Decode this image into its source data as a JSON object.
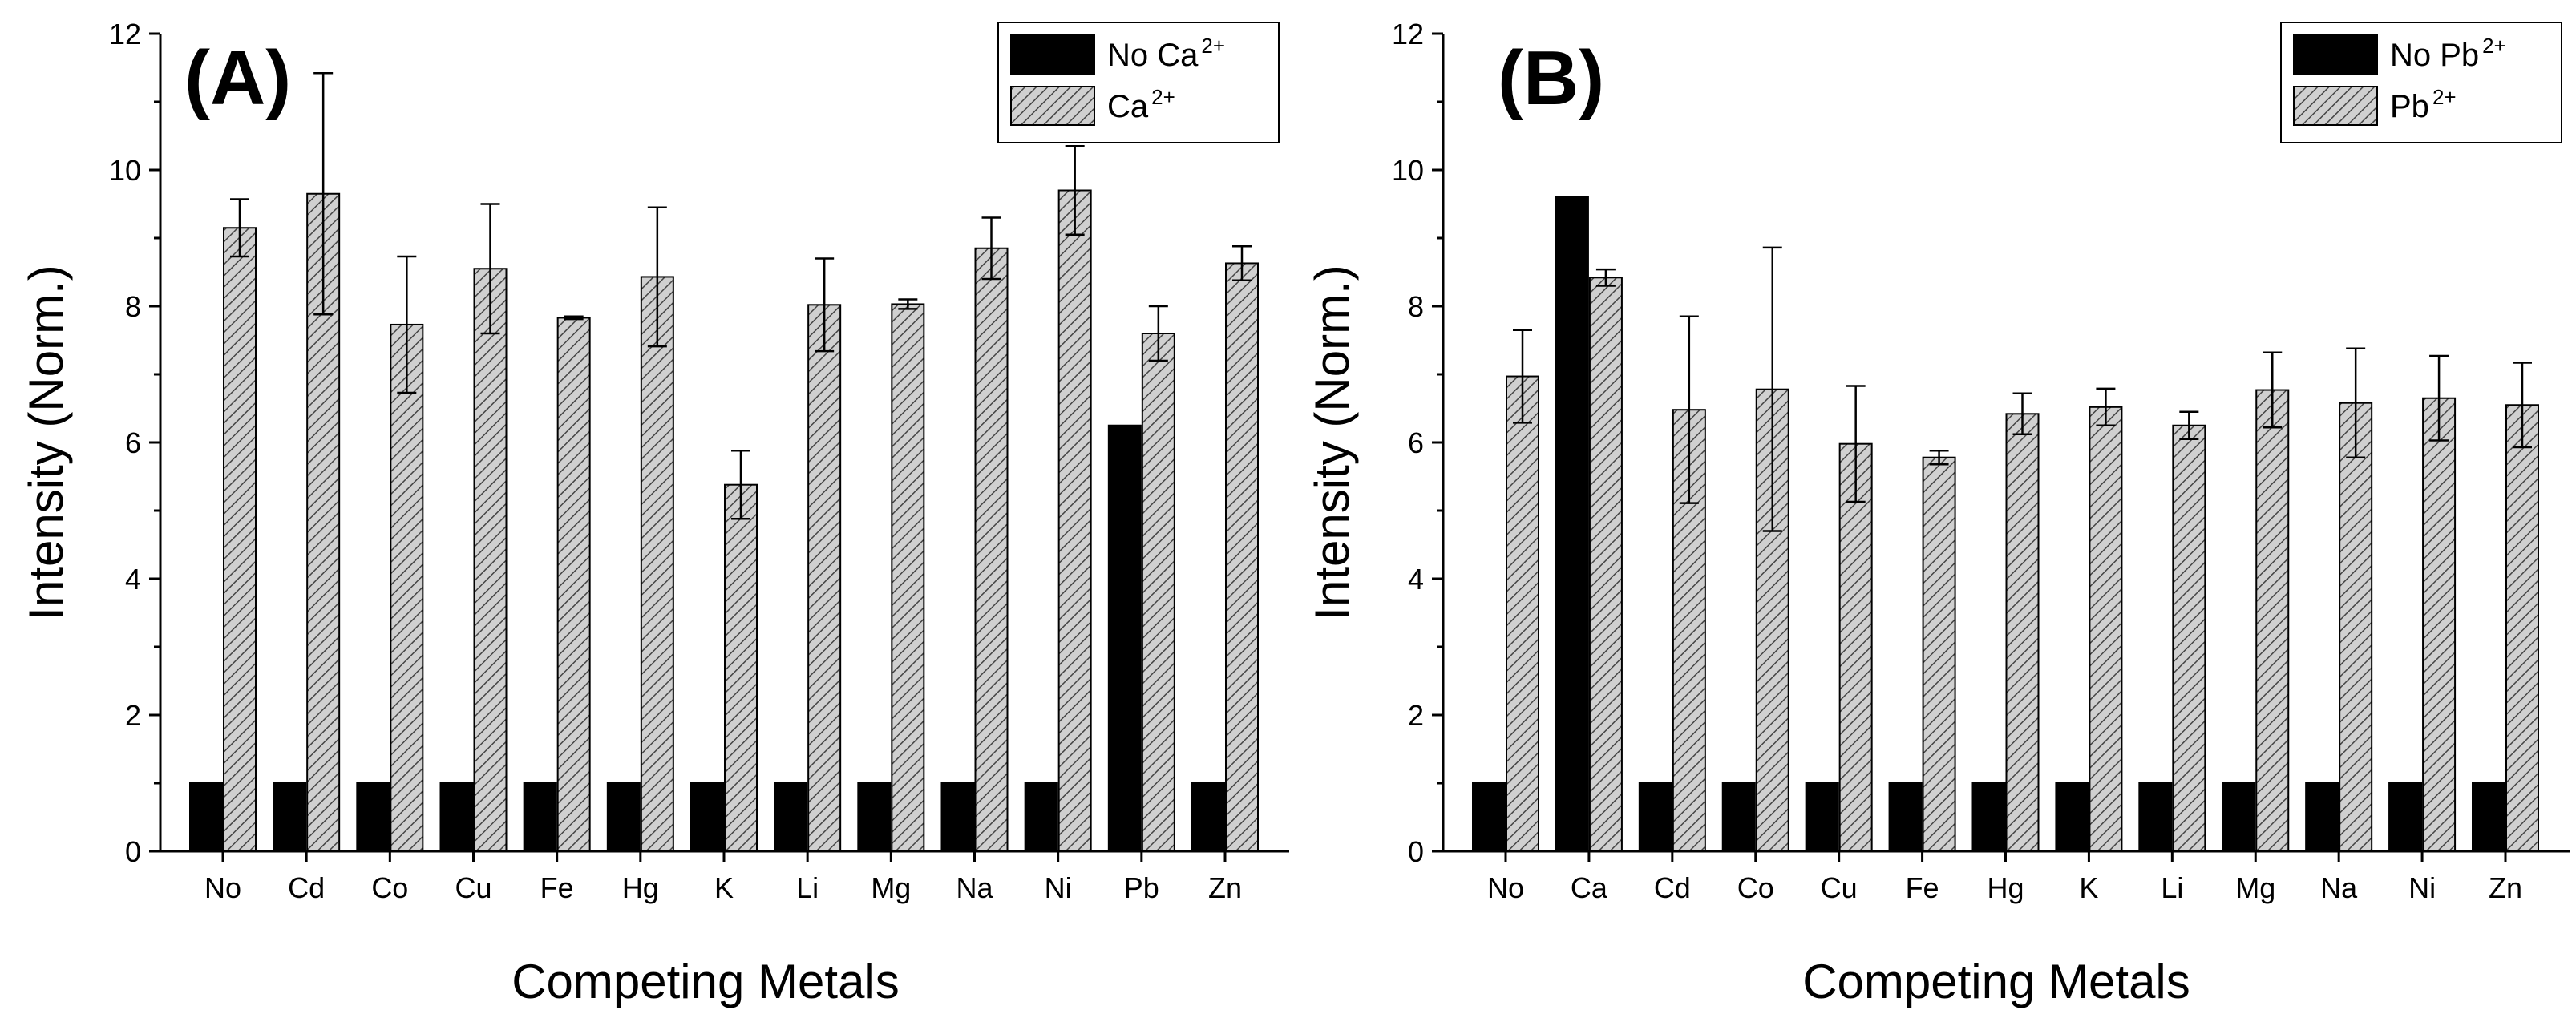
{
  "figure": {
    "description_labels": [
      "(A)",
      "(B)"
    ]
  },
  "chart_data": [
    {
      "type": "bar",
      "panel_label": "(A)",
      "xlabel": "Competing Metals",
      "ylabel": "Intensity (Norm.)",
      "ylim": [
        0,
        12
      ],
      "yticks": [
        0,
        2,
        4,
        6,
        8,
        10,
        12
      ],
      "categories": [
        "No",
        "Cd",
        "Co",
        "Cu",
        "Fe",
        "Hg",
        "K",
        "Li",
        "Mg",
        "Na",
        "Ni",
        "Pb",
        "Zn"
      ],
      "legend_position": "top-right",
      "series": [
        {
          "name": "No Ca",
          "name_sup": "2+",
          "style": "solid",
          "color": "#000000",
          "values": [
            1,
            1,
            1,
            1,
            1,
            1,
            1,
            1,
            1,
            1,
            1,
            6.25,
            1
          ]
        },
        {
          "name": "Ca",
          "name_sup": "2+",
          "style": "hatched",
          "color": "#c8c8c8",
          "values": [
            9.15,
            9.65,
            7.73,
            8.55,
            7.83,
            8.43,
            5.38,
            8.02,
            8.03,
            8.85,
            9.7,
            7.6,
            8.63
          ],
          "errors": [
            0.42,
            1.77,
            1.0,
            0.95,
            0.02,
            1.02,
            0.5,
            0.68,
            0.07,
            0.45,
            0.65,
            0.4,
            0.25
          ]
        }
      ]
    },
    {
      "type": "bar",
      "panel_label": "(B)",
      "xlabel": "Competing Metals",
      "ylabel": "Intensity (Norm.)",
      "ylim": [
        0,
        12
      ],
      "yticks": [
        0,
        2,
        4,
        6,
        8,
        10,
        12
      ],
      "categories": [
        "No",
        "Ca",
        "Cd",
        "Co",
        "Cu",
        "Fe",
        "Hg",
        "K",
        "Li",
        "Mg",
        "Na",
        "Ni",
        "Zn"
      ],
      "legend_position": "top-right",
      "series": [
        {
          "name": "No Pb",
          "name_sup": "2+",
          "style": "solid",
          "color": "#000000",
          "values": [
            1,
            9.6,
            1,
            1,
            1,
            1,
            1,
            1,
            1,
            1,
            1,
            1,
            1
          ]
        },
        {
          "name": "Pb",
          "name_sup": "2+",
          "style": "hatched",
          "color": "#c8c8c8",
          "values": [
            6.97,
            8.42,
            6.48,
            6.78,
            5.98,
            5.78,
            6.42,
            6.52,
            6.25,
            6.77,
            6.58,
            6.65,
            6.55
          ],
          "errors": [
            0.68,
            0.12,
            1.37,
            2.08,
            0.85,
            0.1,
            0.3,
            0.27,
            0.2,
            0.55,
            0.8,
            0.62,
            0.62
          ]
        }
      ]
    }
  ]
}
